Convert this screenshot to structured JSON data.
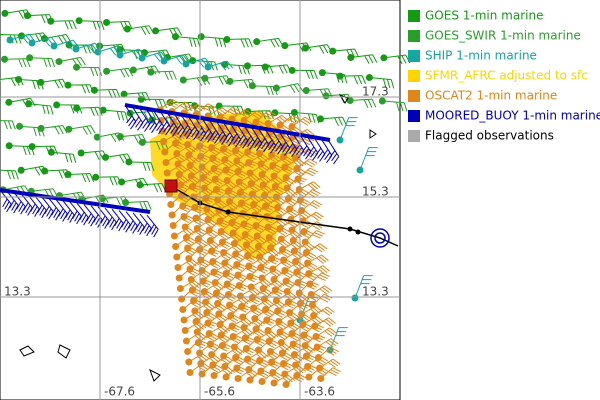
{
  "legend": [
    {
      "label": "GOES 1-min marine",
      "color": "#159a15"
    },
    {
      "label": "GOES_SWIR 1-min marine",
      "color": "#2a9e2a"
    },
    {
      "label": "SHIP 1-min marine",
      "color": "#17a59f"
    },
    {
      "label": "SFMR_AFRC adjusted to sfc",
      "color": "#ffd400"
    },
    {
      "label": "OSCAT2 1-min marine",
      "color": "#e0861a"
    },
    {
      "label": "MOORED_BUOY 1-min marine",
      "color": "#0000bb"
    },
    {
      "label": "Flagged observations",
      "color": "#aaaaaa"
    }
  ],
  "grid_labels": {
    "lat": [
      "17.3",
      "15.3",
      "13.3",
      "13.3"
    ],
    "lon": [
      "-67.6",
      "-65.6",
      "-63.6"
    ]
  }
}
